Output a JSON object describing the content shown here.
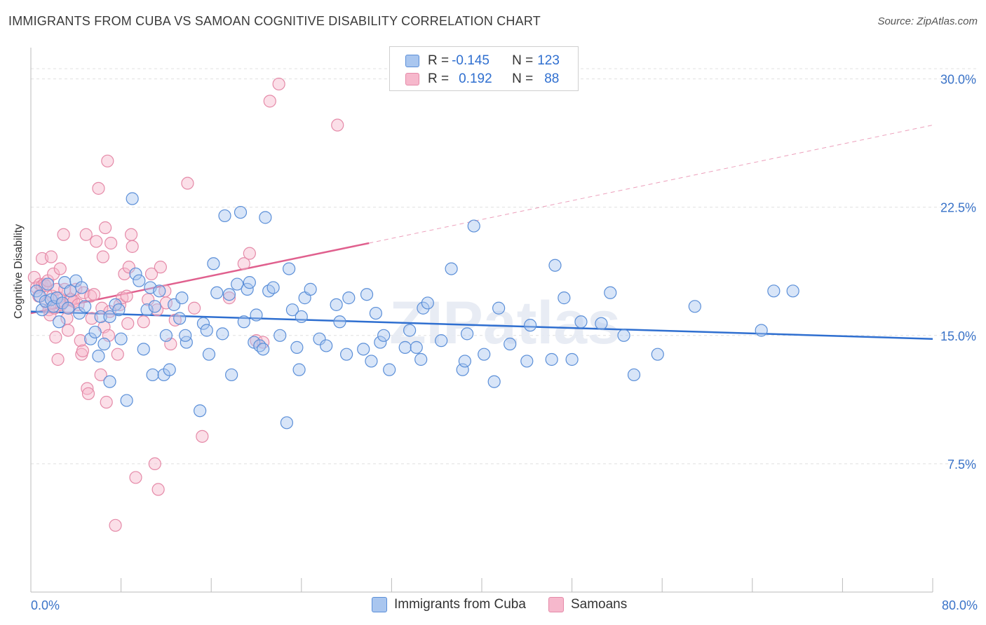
{
  "header": {
    "title": "IMMIGRANTS FROM CUBA VS SAMOAN COGNITIVE DISABILITY CORRELATION CHART",
    "source": "Source: ZipAtlas.com"
  },
  "watermark": "ZIPatlas",
  "legend": {
    "rows": [
      {
        "r_label": "R = ",
        "r_value": "-0.145",
        "n_label": "N = ",
        "n_value": "123"
      },
      {
        "r_label": "R = ",
        "r_value": "0.192",
        "n_label": "N = ",
        "n_value": "88"
      }
    ]
  },
  "colors": {
    "cuba_fill": "#a9c6ef",
    "cuba_stroke": "#5b8fd8",
    "cuba_line": "#2f6fd0",
    "samoan_fill": "#f6b8cc",
    "samoan_stroke": "#e58aa8",
    "samoan_line": "#e0608e",
    "tick_label": "#3a73c8",
    "grid": "#e0e0e0"
  },
  "chart_data": {
    "type": "scatter",
    "title": "IMMIGRANTS FROM CUBA VS SAMOAN COGNITIVE DISABILITY CORRELATION CHART",
    "xlabel": "",
    "ylabel": "Cognitive Disability",
    "xlim": [
      0,
      80
    ],
    "ylim": [
      0,
      31.5
    ],
    "x_tick_labels": [
      "0.0%",
      "80.0%"
    ],
    "y_ticks": [
      7.5,
      15.0,
      22.5,
      30.0
    ],
    "y_tick_labels": [
      "7.5%",
      "15.0%",
      "22.5%",
      "30.0%"
    ],
    "grid": true,
    "legend_position": "top-center",
    "series": [
      {
        "name": "Immigrants from Cuba",
        "trend": {
          "x0": 0,
          "y0": 16.4,
          "x1": 80,
          "y1": 14.8
        },
        "points": [
          [
            0.5,
            17.6
          ],
          [
            0.8,
            17.3
          ],
          [
            1.0,
            16.5
          ],
          [
            1.3,
            17.0
          ],
          [
            1.5,
            18.0
          ],
          [
            1.8,
            17.1
          ],
          [
            2.0,
            16.7
          ],
          [
            2.3,
            17.2
          ],
          [
            2.5,
            15.8
          ],
          [
            2.8,
            16.9
          ],
          [
            3.0,
            18.1
          ],
          [
            3.3,
            16.6
          ],
          [
            3.5,
            17.6
          ],
          [
            4.0,
            18.2
          ],
          [
            4.3,
            16.3
          ],
          [
            4.5,
            17.8
          ],
          [
            4.8,
            16.7
          ],
          [
            5.3,
            14.8
          ],
          [
            5.7,
            15.2
          ],
          [
            6.0,
            13.8
          ],
          [
            6.2,
            16.1
          ],
          [
            6.5,
            14.5
          ],
          [
            7.0,
            12.3
          ],
          [
            7.0,
            16.1
          ],
          [
            7.5,
            16.8
          ],
          [
            7.8,
            16.5
          ],
          [
            8.0,
            14.8
          ],
          [
            8.5,
            11.2
          ],
          [
            9.0,
            23.0
          ],
          [
            9.3,
            18.6
          ],
          [
            9.6,
            18.2
          ],
          [
            10.0,
            14.2
          ],
          [
            10.3,
            16.5
          ],
          [
            10.8,
            12.7
          ],
          [
            10.6,
            17.8
          ],
          [
            11.0,
            16.7
          ],
          [
            11.4,
            17.6
          ],
          [
            11.8,
            12.7
          ],
          [
            12.0,
            15.0
          ],
          [
            12.3,
            13.0
          ],
          [
            12.7,
            16.8
          ],
          [
            13.2,
            16.0
          ],
          [
            13.4,
            17.2
          ],
          [
            13.8,
            14.6
          ],
          [
            13.7,
            15.0
          ],
          [
            15.0,
            10.6
          ],
          [
            15.3,
            15.7
          ],
          [
            15.6,
            15.3
          ],
          [
            15.8,
            13.9
          ],
          [
            16.2,
            19.2
          ],
          [
            16.5,
            17.5
          ],
          [
            17.0,
            15.1
          ],
          [
            17.2,
            22.0
          ],
          [
            17.6,
            17.4
          ],
          [
            17.8,
            12.7
          ],
          [
            18.3,
            18.0
          ],
          [
            18.6,
            22.2
          ],
          [
            18.9,
            15.8
          ],
          [
            19.2,
            17.7
          ],
          [
            19.4,
            18.1
          ],
          [
            19.8,
            14.6
          ],
          [
            20.0,
            16.2
          ],
          [
            20.3,
            14.4
          ],
          [
            20.6,
            14.2
          ],
          [
            20.8,
            21.9
          ],
          [
            21.1,
            17.6
          ],
          [
            21.5,
            17.8
          ],
          [
            22.1,
            15.0
          ],
          [
            22.7,
            9.9
          ],
          [
            22.9,
            18.9
          ],
          [
            23.2,
            16.5
          ],
          [
            23.6,
            14.3
          ],
          [
            23.8,
            13.0
          ],
          [
            24.0,
            16.1
          ],
          [
            24.3,
            17.2
          ],
          [
            24.8,
            17.7
          ],
          [
            25.6,
            14.8
          ],
          [
            26.2,
            14.4
          ],
          [
            27.1,
            16.8
          ],
          [
            27.4,
            15.8
          ],
          [
            28.0,
            13.9
          ],
          [
            28.2,
            17.2
          ],
          [
            29.5,
            14.2
          ],
          [
            29.8,
            17.4
          ],
          [
            30.2,
            13.5
          ],
          [
            30.6,
            16.3
          ],
          [
            31.0,
            14.6
          ],
          [
            31.3,
            15.0
          ],
          [
            31.8,
            13.0
          ],
          [
            33.2,
            14.3
          ],
          [
            33.6,
            15.3
          ],
          [
            34.2,
            14.3
          ],
          [
            34.6,
            13.6
          ],
          [
            34.8,
            16.6
          ],
          [
            35.2,
            16.9
          ],
          [
            36.4,
            14.7
          ],
          [
            37.3,
            18.9
          ],
          [
            38.3,
            13.0
          ],
          [
            38.5,
            13.5
          ],
          [
            38.7,
            15.1
          ],
          [
            39.3,
            21.4
          ],
          [
            40.2,
            13.9
          ],
          [
            41.1,
            12.3
          ],
          [
            41.5,
            16.6
          ],
          [
            42.5,
            14.5
          ],
          [
            44.0,
            13.5
          ],
          [
            44.3,
            15.6
          ],
          [
            46.2,
            13.6
          ],
          [
            46.5,
            19.1
          ],
          [
            47.3,
            17.2
          ],
          [
            48.0,
            13.6
          ],
          [
            48.8,
            15.8
          ],
          [
            50.6,
            15.7
          ],
          [
            51.4,
            17.5
          ],
          [
            52.6,
            15.0
          ],
          [
            53.5,
            12.7
          ],
          [
            55.6,
            13.9
          ],
          [
            58.9,
            16.7
          ],
          [
            64.8,
            15.3
          ],
          [
            65.9,
            17.6
          ],
          [
            67.6,
            17.6
          ]
        ]
      },
      {
        "name": "Samoans",
        "trend": {
          "x0": 0,
          "y0": 16.3,
          "x1": 30,
          "y1": 20.4,
          "x_ext": 80,
          "y_ext": 27.3
        },
        "points": [
          [
            0.3,
            18.4
          ],
          [
            0.5,
            17.8
          ],
          [
            0.7,
            17.3
          ],
          [
            0.8,
            18.0
          ],
          [
            1.0,
            19.5
          ],
          [
            1.0,
            17.9
          ],
          [
            1.2,
            18.0
          ],
          [
            1.3,
            17.9
          ],
          [
            1.4,
            16.9
          ],
          [
            1.5,
            18.2
          ],
          [
            1.6,
            16.5
          ],
          [
            1.7,
            16.2
          ],
          [
            1.8,
            19.6
          ],
          [
            1.9,
            17.3
          ],
          [
            2.0,
            18.6
          ],
          [
            2.1,
            16.6
          ],
          [
            2.2,
            14.9
          ],
          [
            2.3,
            17.7
          ],
          [
            2.4,
            13.6
          ],
          [
            2.5,
            17.2
          ],
          [
            2.6,
            18.9
          ],
          [
            2.7,
            16.8
          ],
          [
            2.8,
            16.9
          ],
          [
            2.9,
            20.9
          ],
          [
            3.0,
            17.7
          ],
          [
            3.2,
            16.0
          ],
          [
            3.3,
            15.3
          ],
          [
            3.4,
            16.6
          ],
          [
            3.5,
            17.1
          ],
          [
            3.6,
            17.1
          ],
          [
            3.8,
            17.0
          ],
          [
            4.0,
            17.7
          ],
          [
            4.2,
            16.8
          ],
          [
            4.4,
            14.7
          ],
          [
            4.5,
            13.9
          ],
          [
            4.6,
            14.1
          ],
          [
            4.7,
            17.5
          ],
          [
            4.9,
            20.9
          ],
          [
            5.0,
            11.9
          ],
          [
            5.1,
            11.6
          ],
          [
            5.3,
            17.3
          ],
          [
            5.4,
            16.0
          ],
          [
            5.6,
            17.4
          ],
          [
            5.8,
            20.5
          ],
          [
            6.0,
            23.6
          ],
          [
            6.2,
            12.7
          ],
          [
            6.3,
            16.6
          ],
          [
            6.4,
            19.6
          ],
          [
            6.5,
            15.5
          ],
          [
            6.6,
            21.3
          ],
          [
            6.7,
            11.1
          ],
          [
            6.8,
            25.2
          ],
          [
            6.9,
            15.0
          ],
          [
            7.0,
            16.4
          ],
          [
            7.1,
            20.4
          ],
          [
            7.5,
            3.9
          ],
          [
            7.7,
            13.9
          ],
          [
            7.9,
            16.8
          ],
          [
            8.1,
            17.2
          ],
          [
            8.3,
            18.6
          ],
          [
            8.5,
            17.3
          ],
          [
            8.6,
            15.7
          ],
          [
            8.7,
            19.0
          ],
          [
            8.9,
            20.9
          ],
          [
            9.0,
            20.2
          ],
          [
            9.3,
            6.7
          ],
          [
            10.0,
            15.8
          ],
          [
            10.4,
            17.1
          ],
          [
            10.7,
            18.6
          ],
          [
            11.0,
            7.5
          ],
          [
            11.2,
            16.5
          ],
          [
            11.3,
            6.0
          ],
          [
            11.5,
            19.0
          ],
          [
            11.9,
            17.6
          ],
          [
            12.0,
            16.9
          ],
          [
            12.4,
            14.5
          ],
          [
            12.8,
            15.9
          ],
          [
            13.9,
            23.9
          ],
          [
            14.5,
            16.6
          ],
          [
            15.2,
            9.1
          ],
          [
            17.6,
            17.2
          ],
          [
            18.9,
            19.2
          ],
          [
            19.4,
            19.8
          ],
          [
            20.0,
            14.7
          ],
          [
            20.6,
            14.6
          ],
          [
            21.2,
            28.7
          ],
          [
            22.0,
            29.7
          ],
          [
            27.2,
            27.3
          ]
        ]
      }
    ]
  },
  "x_axis": {
    "left_label": "0.0%",
    "right_label": "80.0%"
  },
  "bottom_legend": [
    {
      "label": "Immigrants from Cuba"
    },
    {
      "label": "Samoans"
    }
  ]
}
